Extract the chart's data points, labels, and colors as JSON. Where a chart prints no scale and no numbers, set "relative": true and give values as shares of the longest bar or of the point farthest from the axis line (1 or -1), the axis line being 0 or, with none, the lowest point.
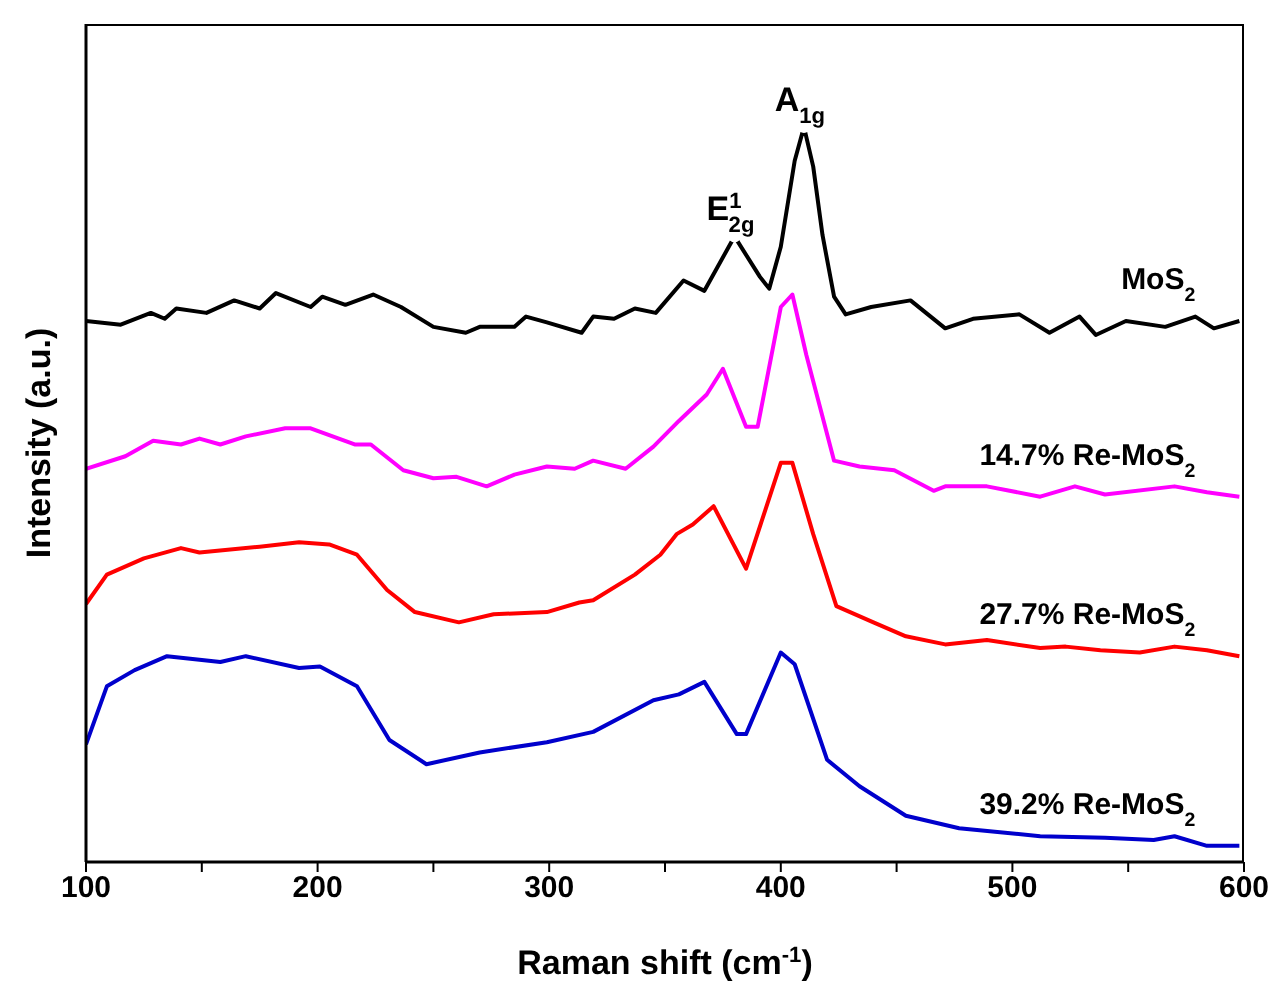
{
  "chart_data": {
    "type": "line",
    "relative": true,
    "xlabel": "Raman shift (cm$^{-1}$)",
    "ylabel": "Intensity (a.u.)",
    "xlim": [
      100,
      600
    ],
    "xticks": [
      100,
      {
        "value": 150,
        "label": null
      },
      200,
      {
        "value": 250,
        "label": null
      },
      300,
      {
        "value": 350,
        "label": null
      },
      400,
      {
        "value": 450,
        "label": null
      },
      500,
      {
        "value": 550,
        "label": null
      },
      600
    ],
    "tick_labels": "x",
    "marker": "none",
    "line_style": "solid",
    "annotations": [
      {
        "text": "E$^{1}$$_{2g}$",
        "x": 380,
        "y": 0.851
      },
      {
        "text": "A$_{1g}$",
        "x": 410,
        "y": 1
      }
    ],
    "series": [
      {
        "name": "MoS$_{2}$",
        "color": "#000000",
        "x": [
          100,
          115,
          128,
          134,
          139,
          152,
          164,
          175,
          182,
          197,
          202,
          212,
          224,
          236,
          250,
          264,
          270,
          285,
          290,
          299,
          314,
          319,
          328,
          337,
          346,
          358,
          367,
          380,
          391,
          395,
          400,
          406,
          410,
          414,
          418,
          423,
          428,
          439,
          456,
          471,
          483,
          503,
          516,
          529,
          536,
          549,
          566,
          579,
          587,
          598
        ],
        "values": [
          0.736,
          0.731,
          0.747,
          0.739,
          0.753,
          0.747,
          0.764,
          0.753,
          0.774,
          0.755,
          0.769,
          0.758,
          0.772,
          0.755,
          0.728,
          0.72,
          0.728,
          0.728,
          0.742,
          0.734,
          0.72,
          0.742,
          0.739,
          0.753,
          0.747,
          0.791,
          0.777,
          0.851,
          0.796,
          0.78,
          0.837,
          0.954,
          1,
          0.946,
          0.853,
          0.769,
          0.745,
          0.755,
          0.764,
          0.726,
          0.739,
          0.745,
          0.72,
          0.742,
          0.717,
          0.736,
          0.728,
          0.742,
          0.726,
          0.736
        ]
      },
      {
        "name": "14.7% Re-MoS$_{2}$",
        "color": "#ff00ff",
        "x": [
          100,
          117,
          129,
          141,
          149,
          158,
          169,
          186,
          197,
          216,
          223,
          237,
          250,
          260,
          273,
          285,
          299,
          311,
          319,
          333,
          345,
          356,
          368,
          375,
          385,
          390,
          400,
          405,
          411,
          423,
          434,
          449,
          466,
          471,
          489,
          512,
          527,
          540,
          570,
          584,
          598
        ],
        "values": [
          0.535,
          0.552,
          0.573,
          0.568,
          0.576,
          0.568,
          0.579,
          0.59,
          0.59,
          0.568,
          0.568,
          0.533,
          0.522,
          0.524,
          0.511,
          0.527,
          0.538,
          0.535,
          0.546,
          0.535,
          0.565,
          0.6,
          0.636,
          0.671,
          0.592,
          0.592,
          0.755,
          0.772,
          0.69,
          0.546,
          0.538,
          0.533,
          0.505,
          0.511,
          0.511,
          0.497,
          0.511,
          0.5,
          0.511,
          0.503,
          0.497
        ]
      },
      {
        "name": "27.7% Re-MoS$_{2}$",
        "color": "#ff0000",
        "x": [
          100,
          109,
          125,
          141,
          149,
          175,
          192,
          205,
          217,
          230,
          242,
          261,
          276,
          299,
          313,
          319,
          337,
          348,
          355,
          362,
          371,
          385,
          400,
          405,
          414,
          424,
          440,
          454,
          471,
          489,
          512,
          523,
          538,
          555,
          570,
          584,
          598
        ],
        "values": [
          0.351,
          0.391,
          0.413,
          0.427,
          0.421,
          0.429,
          0.435,
          0.432,
          0.418,
          0.37,
          0.34,
          0.326,
          0.337,
          0.34,
          0.353,
          0.356,
          0.391,
          0.418,
          0.446,
          0.459,
          0.484,
          0.399,
          0.543,
          0.543,
          0.446,
          0.348,
          0.326,
          0.307,
          0.296,
          0.302,
          0.291,
          0.293,
          0.288,
          0.285,
          0.293,
          0.288,
          0.28
        ]
      },
      {
        "name": "39.2% Re-MoS$_{2}$",
        "color": "#0000cc",
        "x": [
          100,
          109,
          121,
          135,
          158,
          169,
          192,
          201,
          217,
          231,
          247,
          270,
          299,
          319,
          345,
          356,
          367,
          381,
          385,
          400,
          406,
          420,
          434,
          454,
          477,
          512,
          540,
          561,
          570,
          584,
          598
        ],
        "values": [
          0.16,
          0.239,
          0.261,
          0.28,
          0.272,
          0.28,
          0.264,
          0.266,
          0.239,
          0.166,
          0.133,
          0.149,
          0.163,
          0.177,
          0.22,
          0.228,
          0.245,
          0.174,
          0.174,
          0.285,
          0.269,
          0.139,
          0.103,
          0.063,
          0.046,
          0.035,
          0.033,
          0.03,
          0.035,
          0.022,
          0.022
        ]
      }
    ]
  }
}
